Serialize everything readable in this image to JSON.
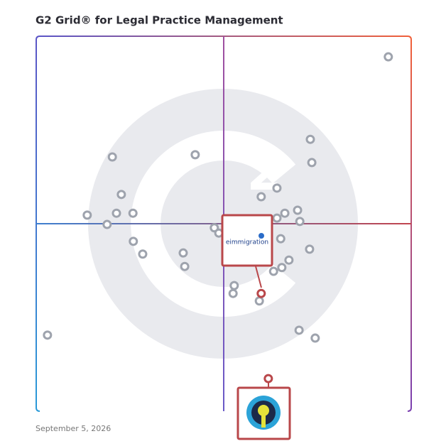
{
  "chart_data": {
    "type": "scatter",
    "title": "G2 Grid® for Legal Practice Management",
    "date": "September 5, 2026",
    "xlim": [
      0,
      100
    ],
    "ylim": [
      0,
      100
    ],
    "series": [
      {
        "color": "#9ea3ad",
        "x": [
          93.9,
          73.1,
          73.5,
          20.3,
          42.4,
          64.2,
          60.0,
          22.7,
          13.6,
          21.4,
          25.8,
          18.9,
          69.7,
          66.3,
          64.2,
          70.3,
          47.5,
          48.7,
          65.2,
          25.9,
          28.4,
          39.2,
          39.6,
          72.9,
          67.4,
          65.5,
          63.3,
          52.8,
          52.5,
          59.5,
          3.0,
          70.1,
          74.4
        ],
        "values": [
          94.5,
          72.5,
          66.3,
          67.8,
          68.4,
          59.5,
          57.2,
          57.8,
          52.3,
          52.8,
          52.8,
          49.8,
          53.6,
          52.8,
          51.5,
          50.6,
          48.9,
          47.5,
          46.0,
          45.3,
          41.9,
          42.2,
          38.6,
          43.2,
          40.3,
          38.3,
          37.3,
          33.5,
          31.4,
          29.4,
          20.3,
          21.6,
          19.5
        ]
      },
      {
        "name": "eimmigration",
        "color": "#b9474a",
        "x": [
          60.0
        ],
        "values": [
          31.4
        ]
      },
      {
        "color": "#b9474a",
        "x": [
          61.9
        ],
        "values": [
          8.7
        ]
      }
    ]
  }
}
